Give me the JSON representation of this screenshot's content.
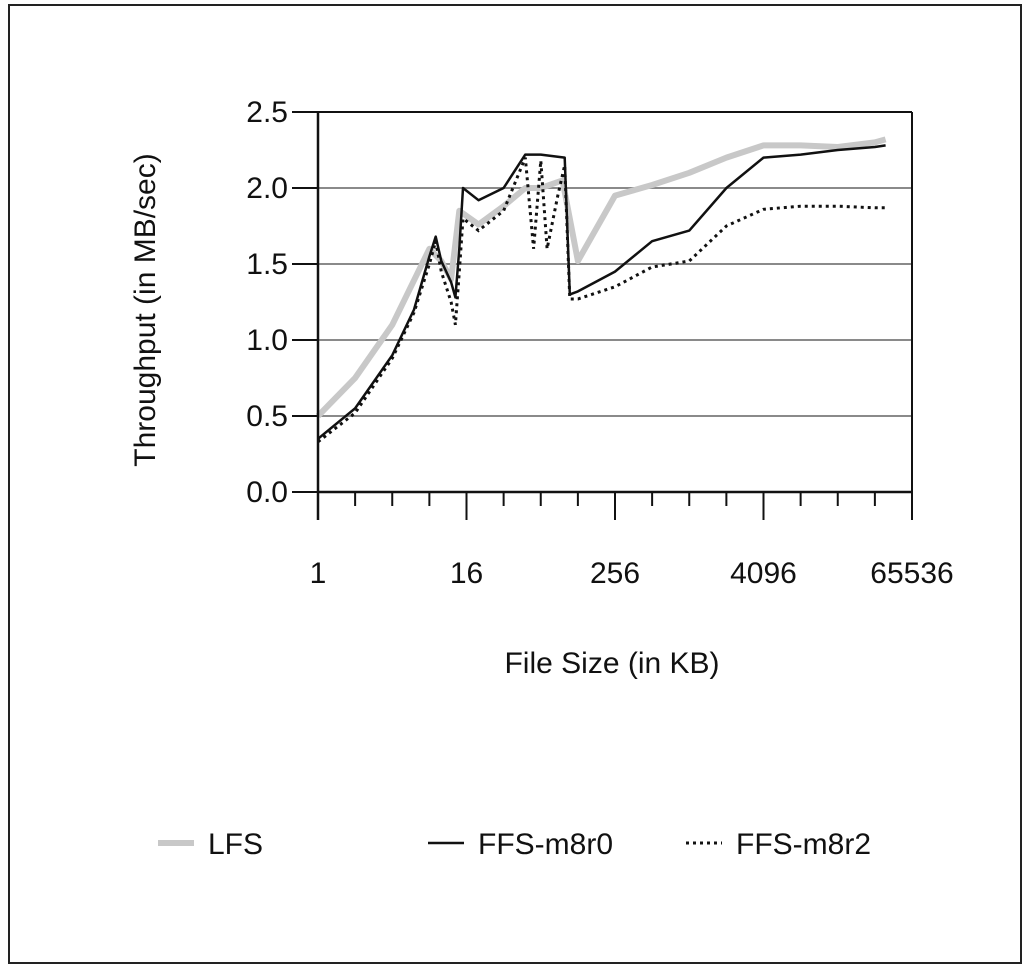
{
  "chart_data": {
    "type": "line",
    "title": "",
    "xlabel": "File Size (in KB)",
    "ylabel": "Throughput (in MB/sec)",
    "x_scale": "log2",
    "xlim": [
      1,
      65536
    ],
    "ylim": [
      0,
      2.5
    ],
    "x_ticks": [
      1,
      16,
      256,
      4096,
      65536
    ],
    "x_tick_labels": [
      "1",
      "16",
      "256",
      "4096",
      "65536"
    ],
    "y_ticks": [
      0.0,
      0.5,
      1.0,
      1.5,
      2.0,
      2.5
    ],
    "y_tick_labels": [
      "0.0",
      "0.5",
      "1.0",
      "1.5",
      "2.0",
      "2.5"
    ],
    "grid": "horizontal",
    "legend_position": "bottom",
    "series": [
      {
        "name": "LFS",
        "color": "#c8c8c8",
        "style": "thick-solid",
        "points": [
          [
            1,
            0.5
          ],
          [
            2,
            0.75
          ],
          [
            4,
            1.1
          ],
          [
            8,
            1.6
          ],
          [
            10,
            1.52
          ],
          [
            12,
            1.4
          ],
          [
            14,
            1.85
          ],
          [
            20,
            1.76
          ],
          [
            32,
            1.88
          ],
          [
            48,
            2.0
          ],
          [
            64,
            2.0
          ],
          [
            96,
            2.05
          ],
          [
            128,
            1.52
          ],
          [
            256,
            1.95
          ],
          [
            512,
            2.02
          ],
          [
            1024,
            2.1
          ],
          [
            2048,
            2.2
          ],
          [
            4096,
            2.28
          ],
          [
            8192,
            2.28
          ],
          [
            16384,
            2.27
          ],
          [
            32768,
            2.3
          ],
          [
            40000,
            2.32
          ]
        ]
      },
      {
        "name": "FFS-m8r0",
        "color": "#111111",
        "style": "solid",
        "points": [
          [
            1,
            0.35
          ],
          [
            2,
            0.55
          ],
          [
            4,
            0.9
          ],
          [
            6,
            1.2
          ],
          [
            8,
            1.55
          ],
          [
            9,
            1.68
          ],
          [
            10,
            1.52
          ],
          [
            12,
            1.38
          ],
          [
            13,
            1.28
          ],
          [
            14,
            1.6
          ],
          [
            15,
            2.0
          ],
          [
            20,
            1.92
          ],
          [
            32,
            2.0
          ],
          [
            48,
            2.22
          ],
          [
            64,
            2.22
          ],
          [
            100,
            2.2
          ],
          [
            110,
            1.3
          ],
          [
            128,
            1.32
          ],
          [
            256,
            1.45
          ],
          [
            512,
            1.65
          ],
          [
            1024,
            1.72
          ],
          [
            2048,
            2.0
          ],
          [
            4096,
            2.2
          ],
          [
            8192,
            2.22
          ],
          [
            16384,
            2.25
          ],
          [
            32768,
            2.27
          ],
          [
            40000,
            2.28
          ]
        ]
      },
      {
        "name": "FFS-m8r2",
        "color": "#111111",
        "style": "dotted",
        "points": [
          [
            1,
            0.33
          ],
          [
            2,
            0.52
          ],
          [
            4,
            0.88
          ],
          [
            6,
            1.18
          ],
          [
            8,
            1.5
          ],
          [
            9,
            1.65
          ],
          [
            10,
            1.45
          ],
          [
            12,
            1.25
          ],
          [
            13,
            1.1
          ],
          [
            14,
            1.45
          ],
          [
            15,
            1.8
          ],
          [
            20,
            1.72
          ],
          [
            32,
            1.85
          ],
          [
            48,
            2.2
          ],
          [
            56,
            1.6
          ],
          [
            64,
            2.18
          ],
          [
            72,
            1.6
          ],
          [
            88,
            1.95
          ],
          [
            100,
            2.15
          ],
          [
            110,
            1.27
          ],
          [
            128,
            1.27
          ],
          [
            256,
            1.35
          ],
          [
            512,
            1.48
          ],
          [
            1024,
            1.52
          ],
          [
            2048,
            1.75
          ],
          [
            4096,
            1.86
          ],
          [
            8192,
            1.88
          ],
          [
            16384,
            1.88
          ],
          [
            32768,
            1.87
          ],
          [
            40000,
            1.87
          ]
        ]
      }
    ]
  }
}
